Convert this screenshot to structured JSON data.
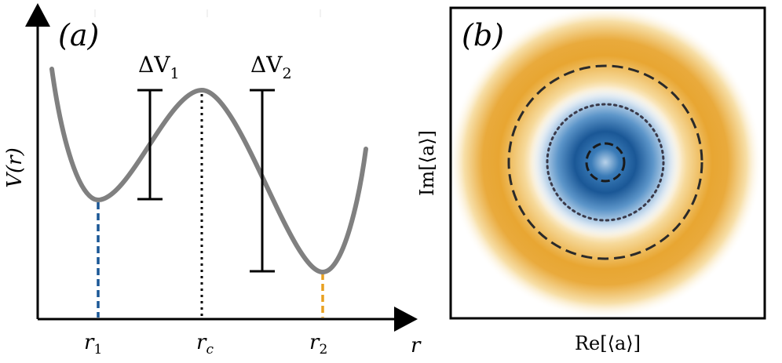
{
  "panel_a": {
    "panel_label": "(a)",
    "y_axis_label": "V(r)",
    "x_axis_label": "r",
    "ticks": {
      "r1": {
        "base": "r",
        "sub": "1"
      },
      "rc": {
        "base": "r",
        "sub": "c"
      },
      "r2": {
        "base": "r",
        "sub": "2"
      }
    },
    "barriers": {
      "dv1": {
        "prefix": "ΔV",
        "sub": "1"
      },
      "dv2": {
        "prefix": "ΔV",
        "sub": "2"
      }
    },
    "colors": {
      "curve": "#808080",
      "r1_line": "#1a5796",
      "rc_line": "#000000",
      "r2_line": "#e8a020"
    }
  },
  "panel_b": {
    "panel_label": "(b)",
    "y_axis_label": "Im[⟨a⟩]",
    "x_axis_label": "Re[⟨a⟩]",
    "colors": {
      "center_blob": "#1a5796",
      "ring": "#e8a020"
    }
  }
}
